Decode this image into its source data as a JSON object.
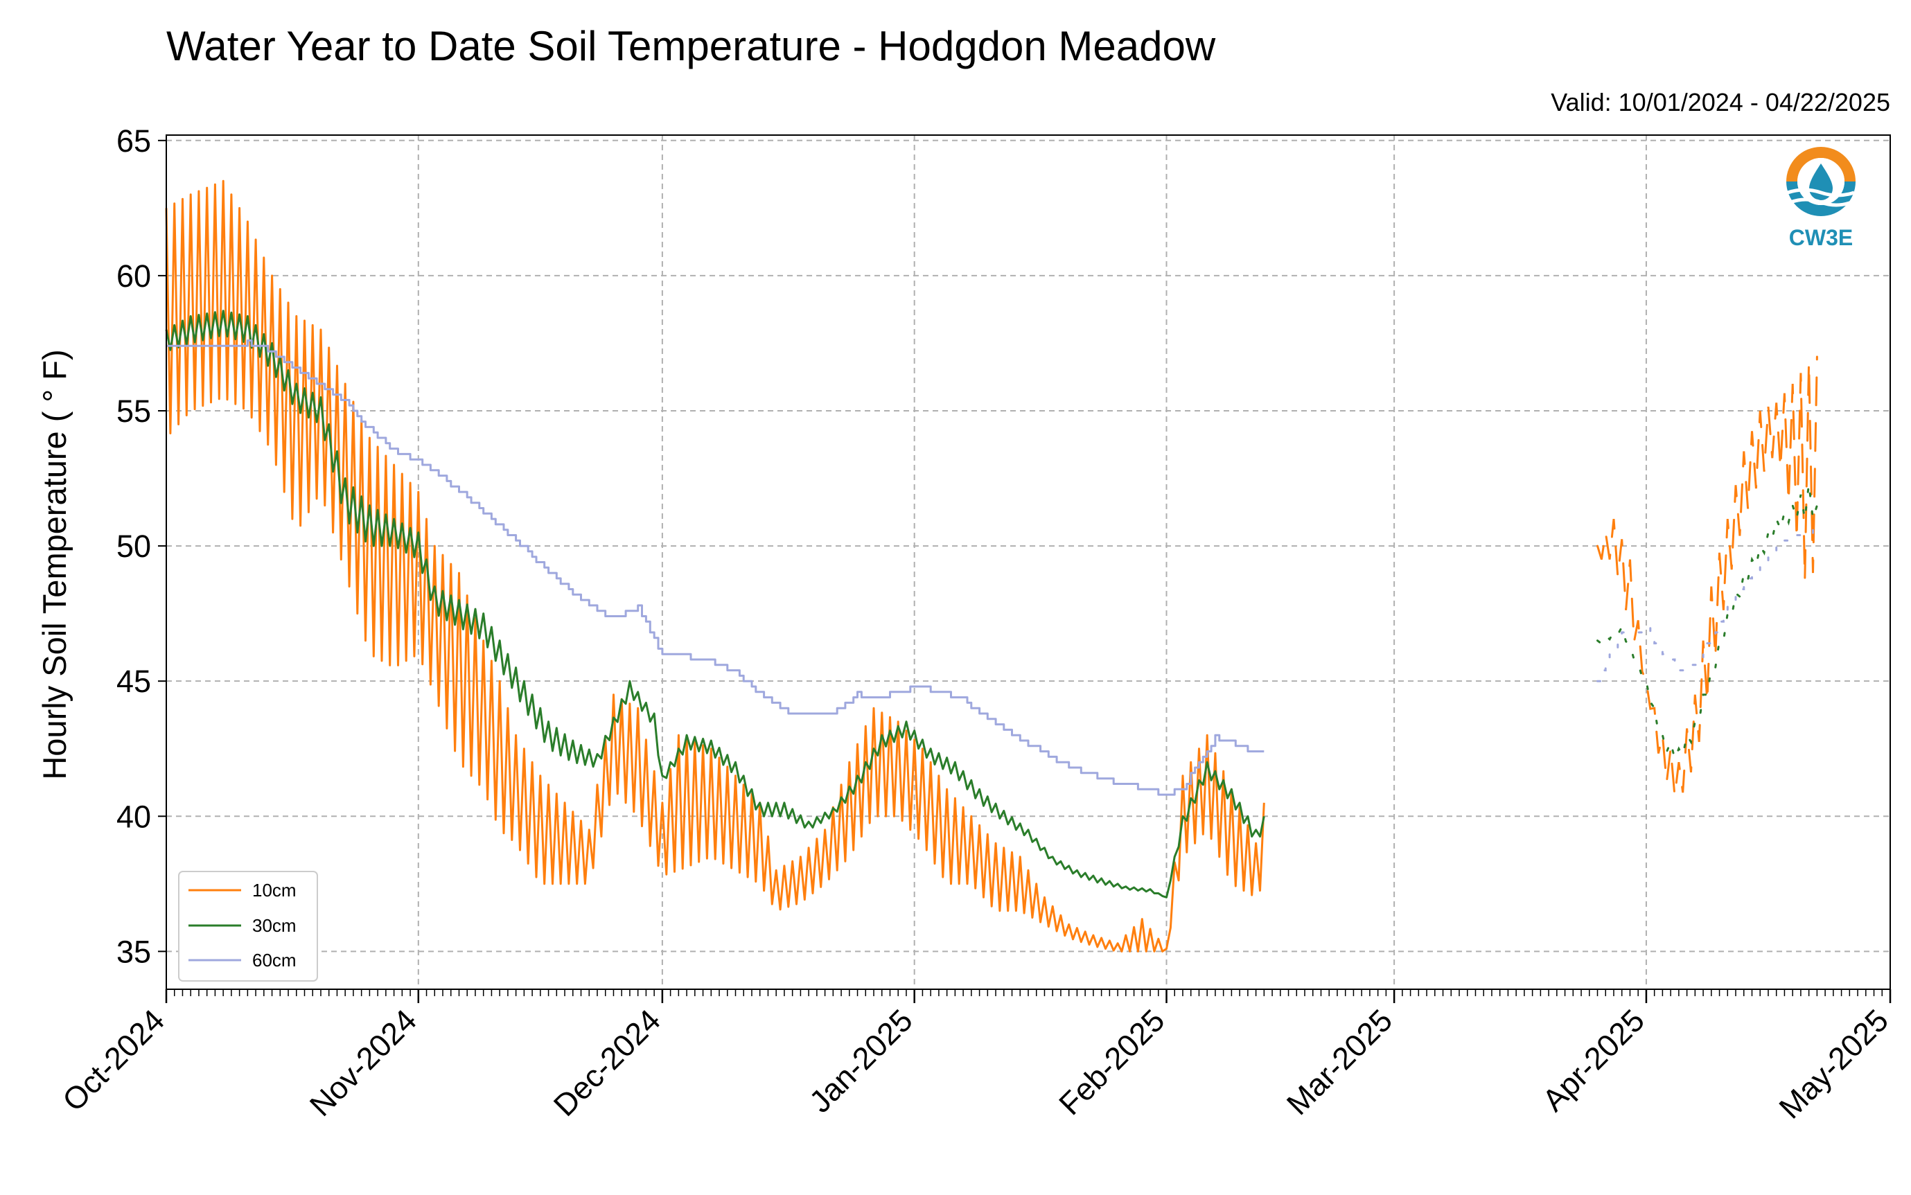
{
  "chart_data": {
    "type": "line",
    "title": "Water Year to Date Soil Temperature - Hodgdon Meadow",
    "subtitle": "Valid: 10/01/2024 - 04/22/2025",
    "ylabel": "Hourly Soil Temperature ( ° F)",
    "xlabel": "",
    "ylim": [
      33.6,
      65.2
    ],
    "xlim": [
      "2024-10-01",
      "2025-05-01"
    ],
    "yticks": [
      35,
      40,
      45,
      50,
      55,
      60,
      65
    ],
    "xticks": [
      {
        "date": "2024-10-01",
        "label": "Oct-2024"
      },
      {
        "date": "2024-11-01",
        "label": "Nov-2024"
      },
      {
        "date": "2024-12-01",
        "label": "Dec-2024"
      },
      {
        "date": "2025-01-01",
        "label": "Jan-2025"
      },
      {
        "date": "2025-02-01",
        "label": "Feb-2025"
      },
      {
        "date": "2025-03-01",
        "label": "Mar-2025"
      },
      {
        "date": "2025-04-01",
        "label": "Apr-2025"
      },
      {
        "date": "2025-05-01",
        "label": "May-2025"
      }
    ],
    "grid": true,
    "legend_position": "bottom-left",
    "logo_text": "CW3E",
    "series": [
      {
        "name": "10cm",
        "color": "#ff7f0e",
        "diurnal": true,
        "points": [
          [
            "2024-10-01",
            62.5,
            54.0
          ],
          [
            "2024-10-04",
            63.0,
            55.0
          ],
          [
            "2024-10-08",
            63.5,
            55.5
          ],
          [
            "2024-10-11",
            62.0,
            55.0
          ],
          [
            "2024-10-14",
            60.0,
            53.5
          ],
          [
            "2024-10-17",
            58.5,
            50.5
          ],
          [
            "2024-10-20",
            58.0,
            52.0
          ],
          [
            "2024-10-23",
            56.0,
            49.0
          ],
          [
            "2024-10-26",
            54.0,
            46.0
          ],
          [
            "2024-10-29",
            53.0,
            45.5
          ],
          [
            "2024-11-01",
            52.0,
            46.0
          ],
          [
            "2024-11-03",
            50.0,
            44.5
          ],
          [
            "2024-11-06",
            49.0,
            42.0
          ],
          [
            "2024-11-09",
            46.5,
            41.0
          ],
          [
            "2024-11-11",
            45.0,
            39.5
          ],
          [
            "2024-11-13",
            43.0,
            39.0
          ],
          [
            "2024-11-16",
            41.5,
            37.5
          ],
          [
            "2024-11-19",
            40.5,
            37.5
          ],
          [
            "2024-11-22",
            39.5,
            37.5
          ],
          [
            "2024-11-25",
            44.5,
            41.0
          ],
          [
            "2024-11-28",
            44.0,
            40.0
          ],
          [
            "2024-12-01",
            40.5,
            37.8
          ],
          [
            "2024-12-03",
            43.0,
            38.0
          ],
          [
            "2024-12-07",
            42.5,
            38.5
          ],
          [
            "2024-12-10",
            41.5,
            38.0
          ],
          [
            "2024-12-13",
            40.5,
            37.5
          ],
          [
            "2024-12-15",
            38.0,
            36.5
          ],
          [
            "2024-12-18",
            38.5,
            36.8
          ],
          [
            "2024-12-21",
            39.5,
            37.5
          ],
          [
            "2024-12-24",
            42.0,
            38.5
          ],
          [
            "2024-12-27",
            44.0,
            40.0
          ],
          [
            "2024-12-30",
            43.5,
            40.0
          ],
          [
            "2025-01-02",
            42.5,
            39.0
          ],
          [
            "2025-01-05",
            41.0,
            37.5
          ],
          [
            "2025-01-08",
            40.0,
            37.5
          ],
          [
            "2025-01-11",
            39.0,
            36.5
          ],
          [
            "2025-01-14",
            38.5,
            36.5
          ],
          [
            "2025-01-17",
            37.0,
            36.0
          ],
          [
            "2025-01-20",
            36.0,
            35.5
          ],
          [
            "2025-01-23",
            35.6,
            35.2
          ],
          [
            "2025-01-26",
            35.3,
            35.0
          ],
          [
            "2025-01-29",
            36.2,
            35.0
          ],
          [
            "2025-02-01",
            35.1,
            35.0
          ],
          [
            "2025-02-03",
            41.5,
            38.5
          ],
          [
            "2025-02-06",
            43.0,
            39.5
          ],
          [
            "2025-02-09",
            41.0,
            37.5
          ],
          [
            "2025-02-12",
            39.0,
            37.0
          ],
          [
            "2025-02-13",
            40.5,
            37.5
          ]
        ],
        "spring_points": [
          [
            "2025-03-26",
            50.0,
            49.5
          ],
          [
            "2025-03-28",
            51.0,
            49.5
          ],
          [
            "2025-03-30",
            49.5,
            47.0
          ],
          [
            "2025-04-01",
            45.0,
            44.8
          ],
          [
            "2025-04-03",
            43.0,
            41.5
          ],
          [
            "2025-04-05",
            42.0,
            40.5
          ],
          [
            "2025-04-07",
            44.5,
            42.0
          ],
          [
            "2025-04-09",
            48.5,
            45.0
          ],
          [
            "2025-04-11",
            51.0,
            48.5
          ],
          [
            "2025-04-13",
            53.5,
            51.0
          ],
          [
            "2025-04-15",
            55.0,
            52.5
          ],
          [
            "2025-04-17",
            55.3,
            53.5
          ],
          [
            "2025-04-19",
            56.0,
            51.0
          ],
          [
            "2025-04-21",
            56.8,
            48.0
          ],
          [
            "2025-04-22",
            57.0,
            50.0
          ]
        ]
      },
      {
        "name": "30cm",
        "color": "#2a7d2a",
        "diurnal": true,
        "points": [
          [
            "2024-10-01",
            58.0,
            57.2
          ],
          [
            "2024-10-04",
            58.5,
            57.5
          ],
          [
            "2024-10-08",
            58.7,
            57.8
          ],
          [
            "2024-10-11",
            58.5,
            57.5
          ],
          [
            "2024-10-14",
            57.5,
            56.5
          ],
          [
            "2024-10-17",
            56.0,
            55.0
          ],
          [
            "2024-10-20",
            55.5,
            54.5
          ],
          [
            "2024-10-23",
            52.5,
            51.0
          ],
          [
            "2024-10-26",
            51.5,
            50.0
          ],
          [
            "2024-10-29",
            51.0,
            50.0
          ],
          [
            "2024-11-01",
            50.5,
            49.5
          ],
          [
            "2024-11-03",
            48.5,
            47.5
          ],
          [
            "2024-11-06",
            48.0,
            47.0
          ],
          [
            "2024-11-09",
            47.5,
            46.5
          ],
          [
            "2024-11-11",
            46.5,
            45.5
          ],
          [
            "2024-11-14",
            45.0,
            44.0
          ],
          [
            "2024-11-17",
            43.5,
            42.5
          ],
          [
            "2024-11-20",
            42.8,
            42.0
          ],
          [
            "2024-11-23",
            42.3,
            41.8
          ],
          [
            "2024-11-27",
            45.0,
            44.5
          ],
          [
            "2024-11-30",
            43.8,
            43.3
          ],
          [
            "2024-12-01",
            41.5,
            41.2
          ],
          [
            "2024-12-04",
            43.0,
            42.5
          ],
          [
            "2024-12-07",
            42.8,
            42.3
          ],
          [
            "2024-12-10",
            42.0,
            41.5
          ],
          [
            "2024-12-13",
            40.5,
            40.0
          ],
          [
            "2024-12-16",
            40.5,
            40.0
          ],
          [
            "2024-12-19",
            39.8,
            39.5
          ],
          [
            "2024-12-22",
            40.3,
            40.0
          ],
          [
            "2024-12-25",
            41.5,
            41.0
          ],
          [
            "2024-12-28",
            43.0,
            42.5
          ],
          [
            "2024-12-31",
            43.5,
            43.0
          ],
          [
            "2025-01-03",
            42.5,
            42.0
          ],
          [
            "2025-01-06",
            42.0,
            41.5
          ],
          [
            "2025-01-09",
            41.0,
            40.5
          ],
          [
            "2025-01-12",
            40.2,
            39.8
          ],
          [
            "2025-01-15",
            39.5,
            39.2
          ],
          [
            "2025-01-18",
            38.5,
            38.3
          ],
          [
            "2025-01-21",
            38.0,
            37.8
          ],
          [
            "2025-01-24",
            37.7,
            37.5
          ],
          [
            "2025-01-27",
            37.4,
            37.3
          ],
          [
            "2025-01-30",
            37.3,
            37.2
          ],
          [
            "2025-02-01",
            37.0,
            37.0
          ],
          [
            "2025-02-03",
            40.0,
            39.5
          ],
          [
            "2025-02-06",
            42.0,
            41.5
          ],
          [
            "2025-02-09",
            41.0,
            40.5
          ],
          [
            "2025-02-12",
            39.5,
            39.0
          ],
          [
            "2025-02-13",
            40.0,
            39.5
          ]
        ],
        "spring_points": [
          [
            "2025-03-26",
            46.5,
            46.3
          ],
          [
            "2025-03-29",
            47.0,
            46.8
          ],
          [
            "2025-04-01",
            45.0,
            44.8
          ],
          [
            "2025-04-03",
            43.0,
            42.5
          ],
          [
            "2025-04-05",
            42.5,
            42.0
          ],
          [
            "2025-04-07",
            43.5,
            43.0
          ],
          [
            "2025-04-09",
            45.5,
            45.0
          ],
          [
            "2025-04-11",
            47.5,
            47.0
          ],
          [
            "2025-04-13",
            49.0,
            48.5
          ],
          [
            "2025-04-15",
            50.0,
            49.5
          ],
          [
            "2025-04-17",
            51.0,
            50.5
          ],
          [
            "2025-04-19",
            51.5,
            51.0
          ],
          [
            "2025-04-21",
            52.3,
            51.0
          ],
          [
            "2025-04-22",
            51.5,
            51.0
          ]
        ]
      },
      {
        "name": "60cm",
        "color": "#9fa8de",
        "diurnal": false,
        "points": [
          [
            "2024-10-01",
            57.3
          ],
          [
            "2024-10-07",
            57.4
          ],
          [
            "2024-10-11",
            57.5
          ],
          [
            "2024-10-14",
            57.2
          ],
          [
            "2024-10-17",
            56.5
          ],
          [
            "2024-10-20",
            56.0
          ],
          [
            "2024-10-23",
            55.3
          ],
          [
            "2024-10-26",
            54.3
          ],
          [
            "2024-10-29",
            53.5
          ],
          [
            "2024-11-01",
            53.1
          ],
          [
            "2024-11-04",
            52.5
          ],
          [
            "2024-11-07",
            51.8
          ],
          [
            "2024-11-10",
            51.0
          ],
          [
            "2024-11-13",
            50.2
          ],
          [
            "2024-11-16",
            49.3
          ],
          [
            "2024-11-19",
            48.5
          ],
          [
            "2024-11-22",
            47.8
          ],
          [
            "2024-11-25",
            47.3
          ],
          [
            "2024-11-28",
            47.7
          ],
          [
            "2024-12-01",
            45.9
          ],
          [
            "2024-12-04",
            45.9
          ],
          [
            "2024-12-07",
            45.7
          ],
          [
            "2024-12-10",
            45.3
          ],
          [
            "2024-12-13",
            44.5
          ],
          [
            "2024-12-16",
            43.9
          ],
          [
            "2024-12-19",
            43.7
          ],
          [
            "2024-12-22",
            43.8
          ],
          [
            "2024-12-25",
            44.5
          ],
          [
            "2024-12-28",
            44.4
          ],
          [
            "2025-01-01",
            44.8
          ],
          [
            "2025-01-04",
            44.6
          ],
          [
            "2025-01-07",
            44.3
          ],
          [
            "2025-01-10",
            43.6
          ],
          [
            "2025-01-13",
            43.0
          ],
          [
            "2025-01-16",
            42.5
          ],
          [
            "2025-01-19",
            42.0
          ],
          [
            "2025-01-22",
            41.6
          ],
          [
            "2025-01-25",
            41.3
          ],
          [
            "2025-01-28",
            41.1
          ],
          [
            "2025-02-01",
            40.8
          ],
          [
            "2025-02-03",
            41.0
          ],
          [
            "2025-02-05",
            42.0
          ],
          [
            "2025-02-07",
            42.9
          ],
          [
            "2025-02-09",
            42.8
          ],
          [
            "2025-02-11",
            42.4
          ],
          [
            "2025-02-13",
            42.4
          ]
        ],
        "spring_points": [
          [
            "2025-03-26",
            45.0
          ],
          [
            "2025-03-29",
            46.8
          ],
          [
            "2025-04-01",
            46.9
          ],
          [
            "2025-04-03",
            46.0
          ],
          [
            "2025-04-05",
            45.4
          ],
          [
            "2025-04-07",
            45.6
          ],
          [
            "2025-04-09",
            46.6
          ],
          [
            "2025-04-11",
            47.7
          ],
          [
            "2025-04-13",
            48.5
          ],
          [
            "2025-04-15",
            49.3
          ],
          [
            "2025-04-17",
            50.0
          ],
          [
            "2025-04-19",
            50.3
          ],
          [
            "2025-04-21",
            50.4
          ],
          [
            "2025-04-22",
            50.6
          ]
        ]
      }
    ]
  }
}
